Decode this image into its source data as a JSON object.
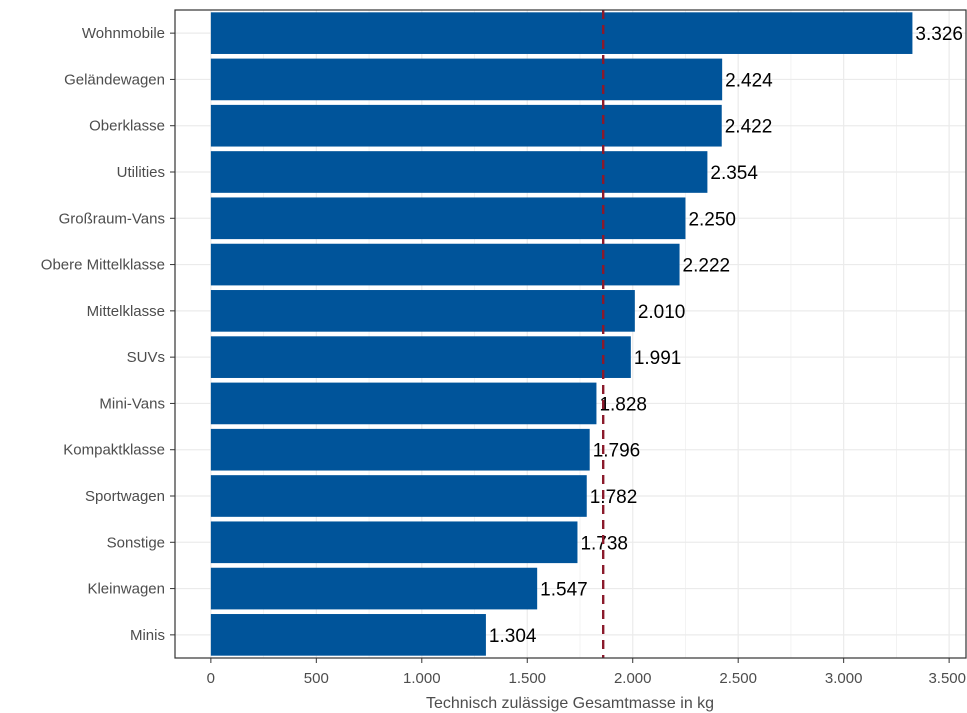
{
  "chart_data": {
    "type": "bar",
    "orientation": "horizontal",
    "categories": [
      "Wohnmobile",
      "Geländewagen",
      "Oberklasse",
      "Utilities",
      "Großraum-Vans",
      "Obere Mittelklasse",
      "Mittelklasse",
      "SUVs",
      "Mini-Vans",
      "Kompaktklasse",
      "Sportwagen",
      "Sonstige",
      "Kleinwagen",
      "Minis"
    ],
    "values": [
      3326,
      2424,
      2422,
      2354,
      2250,
      2222,
      2010,
      1991,
      1828,
      1796,
      1782,
      1738,
      1547,
      1304
    ],
    "value_labels": [
      "3.326",
      "2.424",
      "2.422",
      "2.354",
      "2.250",
      "2.222",
      "2.010",
      "1.991",
      "1.828",
      "1.796",
      "1.782",
      "1.738",
      "1.547",
      "1.304"
    ],
    "xlabel": "Technisch zulässige Gesamtmasse in kg",
    "ylabel": "",
    "xlim": [
      -170,
      3580
    ],
    "xticks": [
      0,
      500,
      1000,
      1500,
      2000,
      2500,
      3000,
      3500
    ],
    "xtick_labels": [
      "0",
      "500",
      "1.000",
      "1.500",
      "2.000",
      "2.500",
      "3.000",
      "3.500"
    ],
    "reference_line": {
      "x": 1860,
      "style": "dashed",
      "color": "#8b1a2b"
    },
    "grid": true,
    "legend": "none",
    "colors": {
      "bar": "#00549a",
      "grid": "#ebebeb",
      "frame": "#333333"
    }
  }
}
